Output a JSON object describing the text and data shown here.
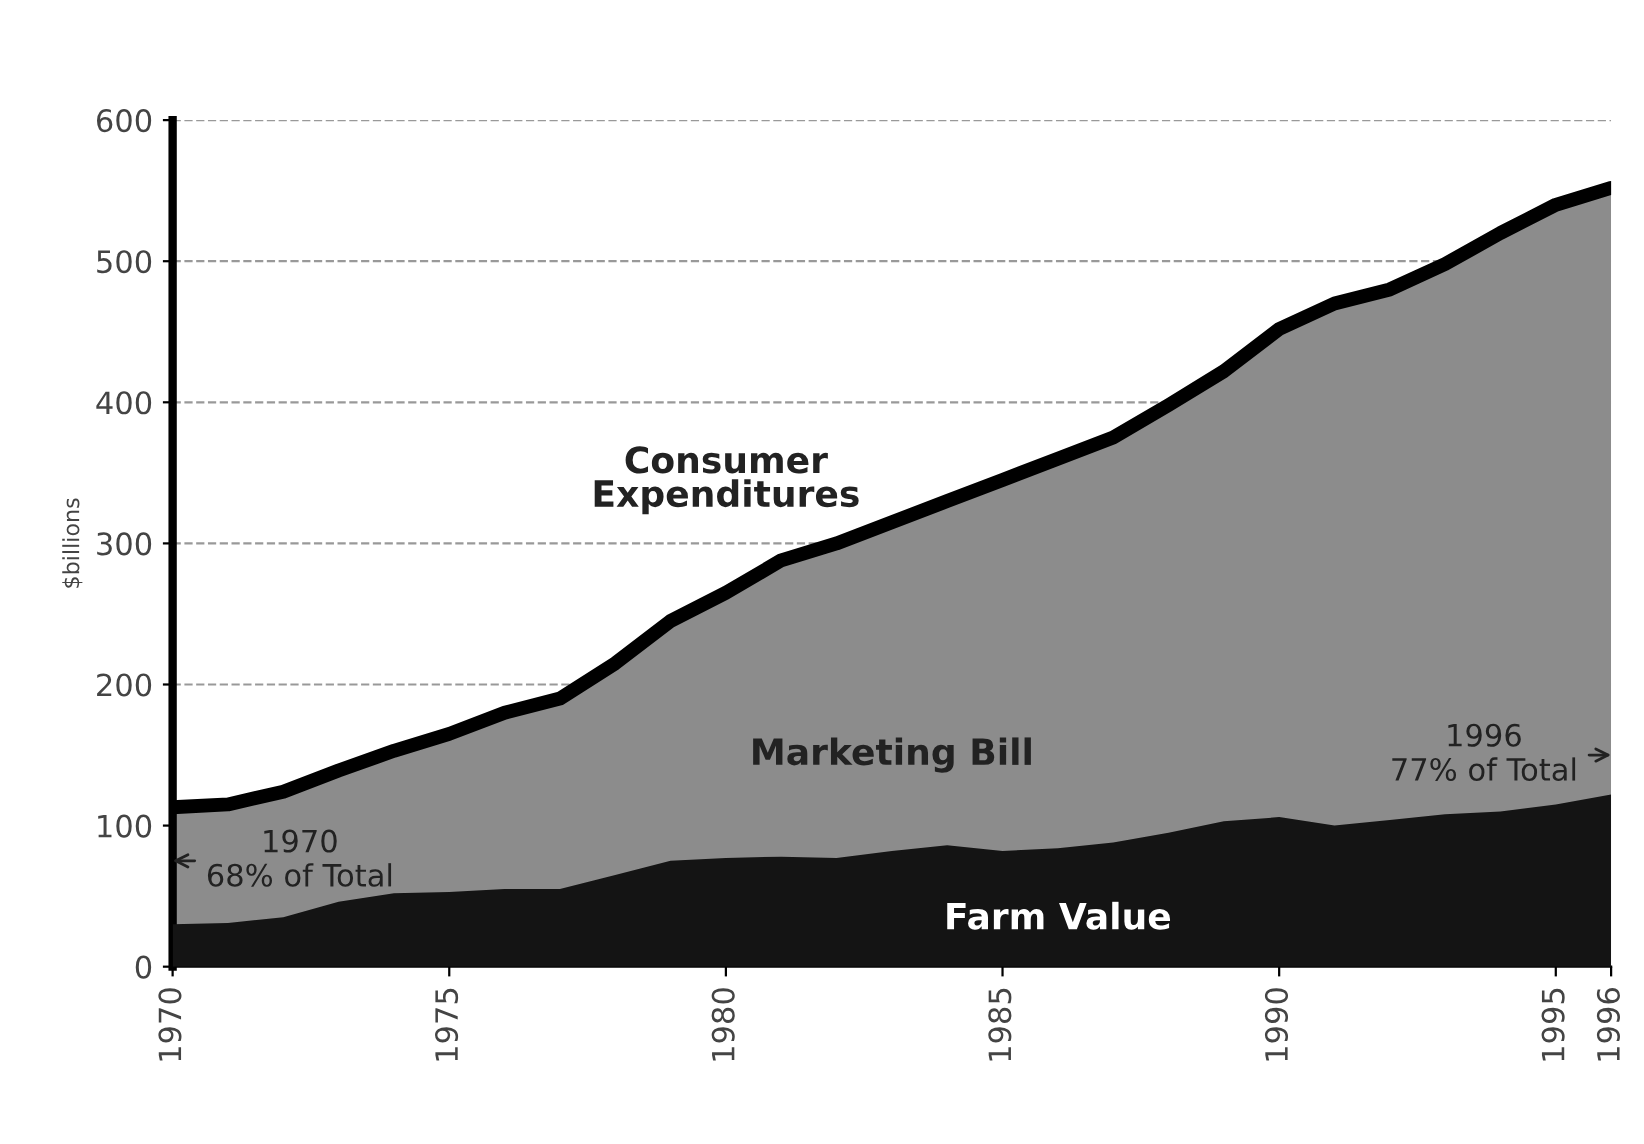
{
  "chart_data": {
    "type": "area",
    "ylabel": "$billions",
    "x": [
      1970,
      1971,
      1972,
      1973,
      1974,
      1975,
      1976,
      1977,
      1978,
      1979,
      1980,
      1981,
      1982,
      1983,
      1984,
      1985,
      1986,
      1987,
      1988,
      1989,
      1990,
      1991,
      1992,
      1993,
      1994,
      1995,
      1996
    ],
    "series": [
      {
        "name": "Consumer Expenditures",
        "color": "#8c8c8c",
        "values": [
          113,
          115,
          124,
          139,
          153,
          165,
          180,
          190,
          215,
          245,
          265,
          288,
          300,
          315,
          330,
          345,
          360,
          375,
          398,
          422,
          452,
          470,
          480,
          498,
          520,
          540,
          552
        ]
      },
      {
        "name": "Farm Value",
        "color": "#141414",
        "values": [
          30,
          31,
          35,
          46,
          52,
          53,
          55,
          55,
          65,
          75,
          77,
          78,
          77,
          82,
          86,
          82,
          84,
          88,
          95,
          103,
          106,
          100,
          104,
          108,
          110,
          115,
          122
        ]
      }
    ],
    "xlim": [
      1970,
      1996
    ],
    "xticks": [
      1970,
      1975,
      1980,
      1985,
      1990,
      1995,
      1996
    ],
    "ylim": [
      0,
      600
    ],
    "yticks": [
      0,
      100,
      200,
      300,
      400,
      500,
      600
    ],
    "grid": "y",
    "annotations": [
      "Marketing Bill",
      {
        "text": "1970\n68% of Total",
        "x": 1970,
        "y": 75
      },
      {
        "text": "1996\n77% of Total",
        "x": 1996,
        "y": 150
      }
    ]
  }
}
